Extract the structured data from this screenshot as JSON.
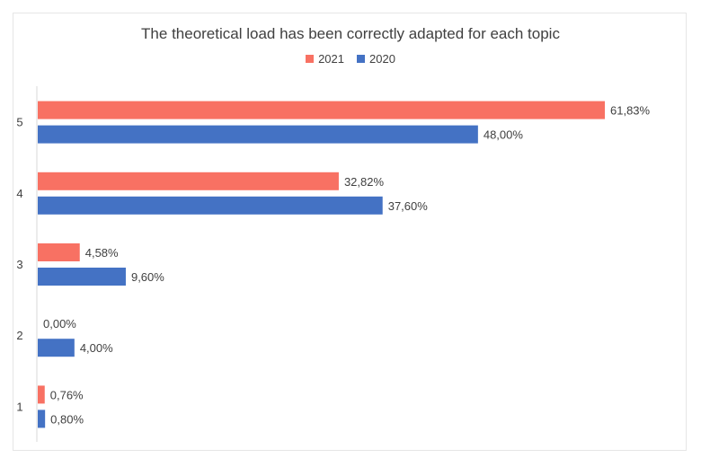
{
  "chart_data": {
    "type": "bar",
    "orientation": "horizontal",
    "title": "The theoretical load has been correctly adapted for each topic",
    "categories": [
      "1",
      "2",
      "3",
      "4",
      "5"
    ],
    "series": [
      {
        "name": "2021",
        "color": "#f87163",
        "values": [
          0.76,
          0.0,
          4.58,
          32.82,
          61.83
        ],
        "labels": [
          "0,76%",
          "0,00%",
          "4,58%",
          "32,82%",
          "61,83%"
        ]
      },
      {
        "name": "2020",
        "color": "#4472c4",
        "values": [
          0.8,
          4.0,
          9.6,
          37.6,
          48.0
        ],
        "labels": [
          "0,80%",
          "4,00%",
          "9,60%",
          "37,60%",
          "48,00%"
        ]
      }
    ],
    "xlim": [
      0,
      65
    ],
    "legend": "top",
    "grid": false
  }
}
